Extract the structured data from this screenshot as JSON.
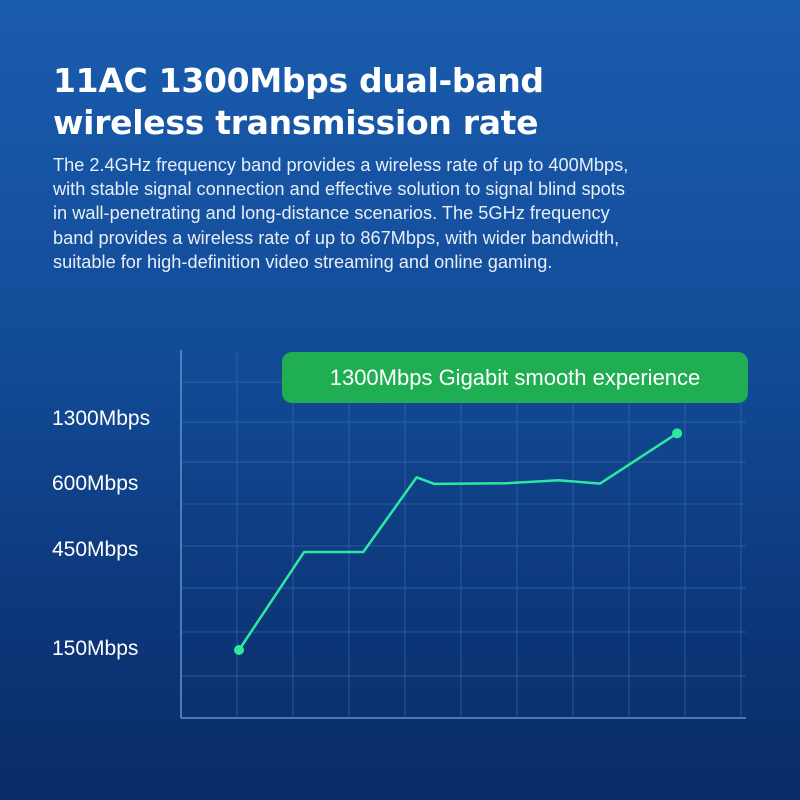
{
  "header": {
    "title_lines": [
      "11AC 1300Mbps dual-band",
      "wireless transmission rate"
    ],
    "description_lines": [
      "The 2.4GHz frequency band provides a wireless rate of up to 400Mbps,",
      "with stable signal connection and effective solution to signal blind spots",
      "in wall-penetrating and long-distance scenarios. The 5GHz frequency",
      "band provides a wireless rate of up to 867Mbps, with wider bandwidth,",
      "suitable for high-definition video streaming and online gaming."
    ]
  },
  "colors": {
    "line": "#2ee8a0",
    "badge": "#1fae52",
    "grid": "#3a78b8",
    "axis": "#5f93c8"
  },
  "chart_data": {
    "type": "line",
    "annotation": "1300Mbps Gigabit smooth experience",
    "y_tick_labels": [
      "1300Mbps",
      "600Mbps",
      "450Mbps",
      "150Mbps"
    ],
    "grid": true,
    "series": [
      {
        "points": [
          {
            "x": 0,
            "y": 150,
            "marker": true
          },
          {
            "x": 1.1,
            "y": 450
          },
          {
            "x": 2.1,
            "y": 450
          },
          {
            "x": 3.0,
            "y": 680
          },
          {
            "x": 3.3,
            "y": 612
          },
          {
            "x": 4.5,
            "y": 618
          },
          {
            "x": 5.4,
            "y": 650
          },
          {
            "x": 6.1,
            "y": 615
          },
          {
            "x": 7.4,
            "y": 1140,
            "marker": true
          }
        ]
      }
    ]
  }
}
